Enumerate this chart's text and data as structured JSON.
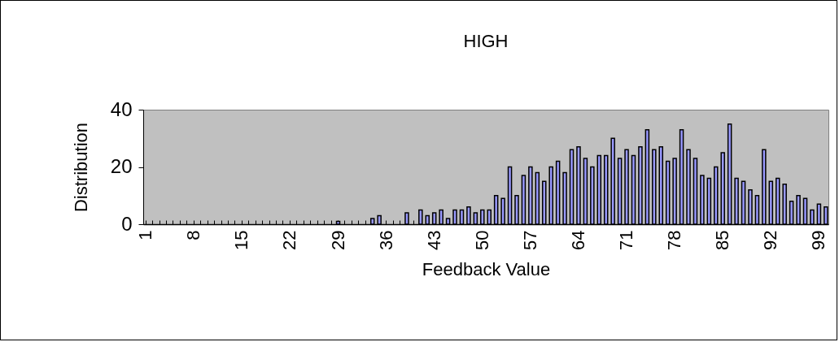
{
  "chart_data": {
    "type": "bar",
    "title": "HIGH",
    "xlabel": "Feedback Value",
    "ylabel": "Distribution",
    "categories": [
      "1",
      null,
      null,
      null,
      null,
      null,
      null,
      "8",
      null,
      null,
      null,
      null,
      null,
      null,
      "15",
      null,
      null,
      null,
      null,
      null,
      null,
      "22",
      null,
      null,
      null,
      null,
      null,
      null,
      "29",
      null,
      null,
      null,
      null,
      null,
      null,
      "36",
      null,
      null,
      null,
      null,
      null,
      null,
      "43",
      null,
      null,
      null,
      null,
      null,
      null,
      "50",
      null,
      null,
      null,
      null,
      null,
      null,
      "57",
      null,
      null,
      null,
      null,
      null,
      null,
      "64",
      null,
      null,
      null,
      null,
      null,
      null,
      "71",
      null,
      null,
      null,
      null,
      null,
      null,
      "78",
      null,
      null,
      null,
      null,
      null,
      null,
      "85",
      null,
      null,
      null,
      null,
      null,
      null,
      "92",
      null,
      null,
      null,
      null,
      null,
      null,
      "99",
      null
    ],
    "values": [
      0,
      0,
      0,
      0,
      0,
      0,
      0,
      0,
      0,
      0,
      0,
      0,
      0,
      0,
      0,
      0,
      0,
      0,
      0,
      0,
      0,
      0,
      0,
      0,
      0,
      0,
      0,
      0,
      1,
      0,
      0,
      0,
      0,
      2,
      3,
      0,
      0,
      0,
      4,
      0,
      5,
      3,
      4,
      5,
      2,
      5,
      5,
      6,
      4,
      5,
      5,
      10,
      9,
      20,
      10,
      17,
      20,
      18,
      15,
      20,
      22,
      18,
      26,
      27,
      23,
      20,
      24,
      24,
      30,
      23,
      26,
      24,
      27,
      33,
      26,
      27,
      22,
      23,
      33,
      26,
      23,
      17,
      16,
      20,
      25,
      35,
      16,
      15,
      12,
      10,
      26,
      15,
      16,
      14,
      8,
      10,
      9,
      5,
      7,
      6
    ],
    "color": "#9999ff",
    "ylim": [
      0,
      40
    ],
    "yticks": [
      0,
      20,
      40
    ]
  }
}
